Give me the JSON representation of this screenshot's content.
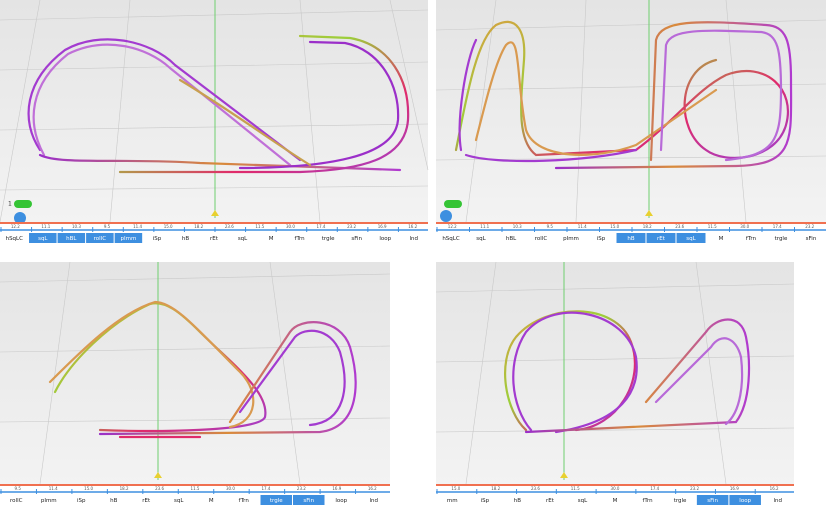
{
  "panels": [
    {
      "toggle": "1",
      "ticks": [
        "12.2",
        "11.1",
        "10.3",
        "9.5",
        "11.4",
        "15.0",
        "18.2",
        "23.6",
        "11.5",
        "30.0",
        "17.4",
        "23.2",
        "16.9",
        "16.2"
      ],
      "segments": [
        {
          "label": "hSqLC",
          "active": false
        },
        {
          "label": "sqL",
          "active": true
        },
        {
          "label": "hBL",
          "active": true
        },
        {
          "label": "rollC",
          "active": true
        },
        {
          "label": "pImm",
          "active": true
        },
        {
          "label": "iSp",
          "active": false
        },
        {
          "label": "hB",
          "active": false
        },
        {
          "label": "rEt",
          "active": false
        },
        {
          "label": "sqL",
          "active": false
        },
        {
          "label": "M",
          "active": false
        },
        {
          "label": "fTrn",
          "active": false
        },
        {
          "label": "trgle",
          "active": false
        },
        {
          "label": "sFin",
          "active": false
        },
        {
          "label": "loop",
          "active": false
        },
        {
          "label": "lnd",
          "active": false
        }
      ]
    },
    {
      "ticks": [
        "12.2",
        "11.1",
        "10.3",
        "9.5",
        "11.4",
        "15.0",
        "18.2",
        "23.6",
        "11.5",
        "30.0",
        "17.4",
        "23.2"
      ],
      "segments": [
        {
          "label": "hSqLC",
          "active": false
        },
        {
          "label": "sqL",
          "active": false
        },
        {
          "label": "hBL",
          "active": false
        },
        {
          "label": "rollC",
          "active": false
        },
        {
          "label": "pImm",
          "active": false
        },
        {
          "label": "iSp",
          "active": false
        },
        {
          "label": "hB",
          "active": true
        },
        {
          "label": "rEt",
          "active": true
        },
        {
          "label": "sqL",
          "active": true
        },
        {
          "label": "M",
          "active": false
        },
        {
          "label": "fTrn",
          "active": false
        },
        {
          "label": "trgle",
          "active": false
        },
        {
          "label": "sFin",
          "active": false
        }
      ]
    },
    {
      "ticks": [
        "9.5",
        "11.4",
        "15.0",
        "18.2",
        "23.6",
        "11.5",
        "30.0",
        "17.4",
        "23.2",
        "16.9",
        "16.2"
      ],
      "segments": [
        {
          "label": "rollC",
          "active": false
        },
        {
          "label": "pImm",
          "active": false
        },
        {
          "label": "iSp",
          "active": false
        },
        {
          "label": "hB",
          "active": false
        },
        {
          "label": "rEt",
          "active": false
        },
        {
          "label": "sqL",
          "active": false
        },
        {
          "label": "M",
          "active": false
        },
        {
          "label": "fTrn",
          "active": false
        },
        {
          "label": "trgle",
          "active": true
        },
        {
          "label": "sFin",
          "active": true
        },
        {
          "label": "loop",
          "active": false
        },
        {
          "label": "lnd",
          "active": false
        }
      ]
    },
    {
      "ticks": [
        "15.0",
        "18.2",
        "23.6",
        "11.5",
        "30.0",
        "17.4",
        "23.2",
        "16.9",
        "16.2"
      ],
      "segments": [
        {
          "label": "mm",
          "active": false
        },
        {
          "label": "iSp",
          "active": false
        },
        {
          "label": "hB",
          "active": false
        },
        {
          "label": "rEt",
          "active": false
        },
        {
          "label": "sqL",
          "active": false
        },
        {
          "label": "M",
          "active": false
        },
        {
          "label": "fTrn",
          "active": false
        },
        {
          "label": "trgle",
          "active": false
        },
        {
          "label": "sFin",
          "active": true
        },
        {
          "label": "loop",
          "active": true
        },
        {
          "label": "lnd",
          "active": false
        }
      ]
    }
  ]
}
